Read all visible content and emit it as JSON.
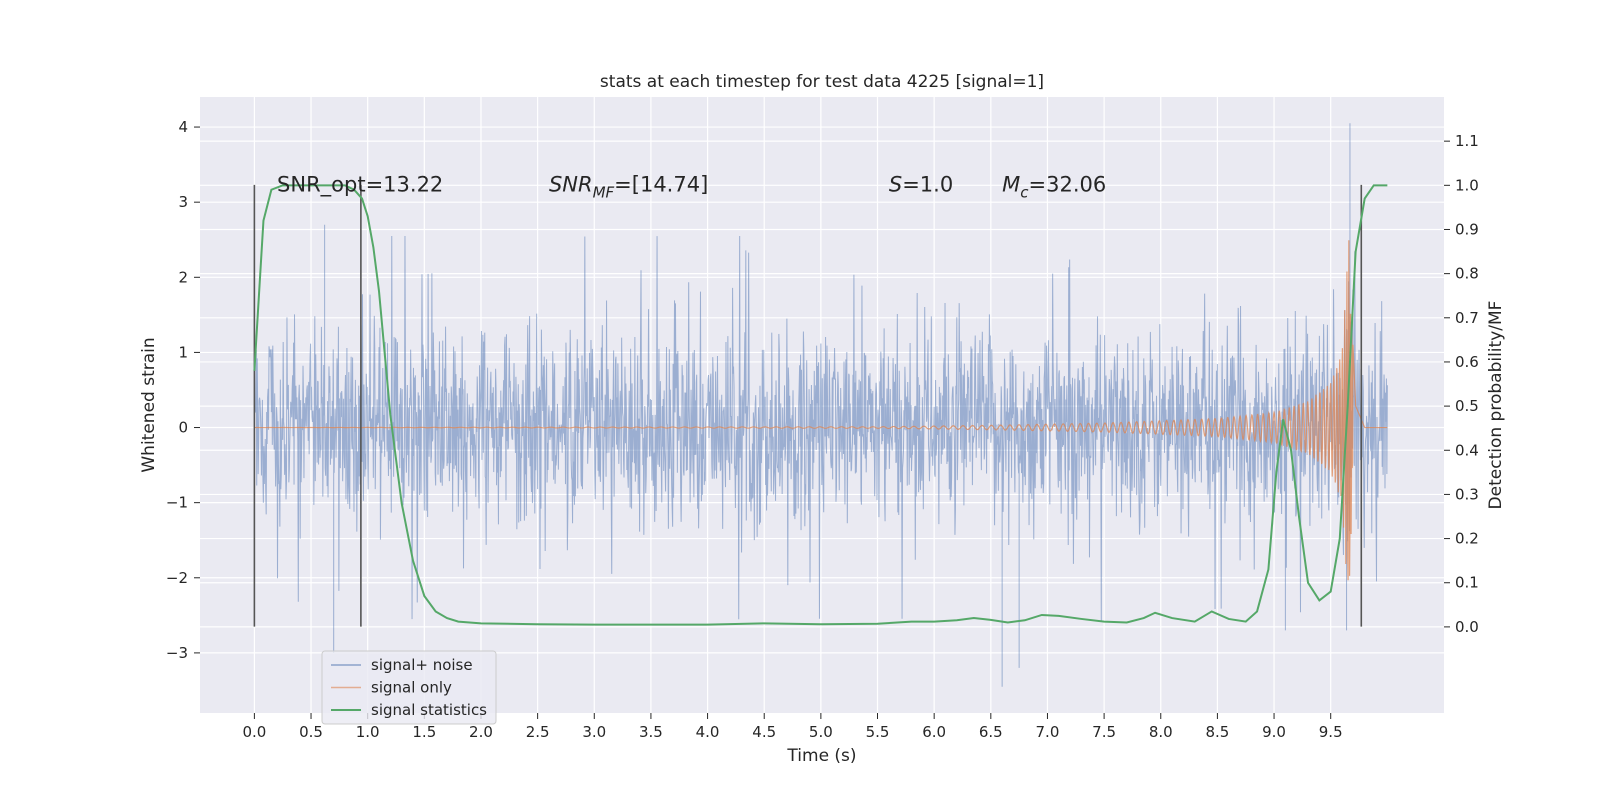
{
  "chart_data": {
    "type": "line",
    "title": "stats at each timestep for test data 4225 [signal=1]",
    "xlabel": "Time (s)",
    "ylabel": "Whitened strain",
    "y2label": "Detection probability/MF",
    "xlim": [
      -0.48,
      10.5
    ],
    "ylim": [
      -3.8,
      4.4
    ],
    "y2lim": [
      -0.195,
      1.2
    ],
    "xticks": [
      0.0,
      0.5,
      1.0,
      1.5,
      2.0,
      2.5,
      3.0,
      3.5,
      4.0,
      4.5,
      5.0,
      5.5,
      6.0,
      6.5,
      7.0,
      7.5,
      8.0,
      8.5,
      9.0,
      9.5
    ],
    "xtick_labels": [
      "0.0",
      "0.5",
      "1.0",
      "1.5",
      "2.0",
      "2.5",
      "3.0",
      "3.5",
      "4.0",
      "4.5",
      "5.0",
      "5.5",
      "6.0",
      "6.5",
      "7.0",
      "7.5",
      "8.0",
      "8.5",
      "9.0",
      "9.5"
    ],
    "yticks": [
      -3,
      -2,
      -1,
      0,
      1,
      2,
      3,
      4
    ],
    "ytick_labels": [
      "−3",
      "−2",
      "−1",
      "0",
      "1",
      "2",
      "3",
      "4"
    ],
    "y2ticks": [
      0.0,
      0.1,
      0.2,
      0.3,
      0.4,
      0.5,
      0.6,
      0.7,
      0.8,
      0.9,
      1.0,
      1.1
    ],
    "y2tick_labels": [
      "0.0",
      "0.1",
      "0.2",
      "0.3",
      "0.4",
      "0.5",
      "0.6",
      "0.7",
      "0.8",
      "0.9",
      "1.0",
      "1.1"
    ],
    "grid": true,
    "legend_position": "bottom-left",
    "colors": {
      "noise": "#4c72b0",
      "signal": "#dd8452",
      "stats": "#55a868",
      "background": "#eaeaf2",
      "grid": "#ffffff",
      "vline": "#555555"
    },
    "series": [
      {
        "name": "signal+ noise",
        "axis": "left",
        "kind": "noise-band",
        "x_range": [
          0.0,
          10.0
        ],
        "typical_envelope": [
          -1.4,
          1.4
        ],
        "peaks": [
          [
            0.7,
            -3.0
          ],
          [
            0.62,
            2.7
          ],
          [
            6.6,
            -3.45
          ],
          [
            6.75,
            -3.2
          ],
          [
            9.67,
            4.05
          ],
          [
            9.64,
            -2.7
          ],
          [
            9.1,
            -2.7
          ]
        ]
      },
      {
        "name": "signal only",
        "axis": "left",
        "kind": "chirp",
        "x_range": [
          0.0,
          10.0
        ],
        "merger_time": 9.7,
        "amplitude_points": [
          [
            5.5,
            0.01
          ],
          [
            6.5,
            0.03
          ],
          [
            7.5,
            0.06
          ],
          [
            8.5,
            0.12
          ],
          [
            9.0,
            0.2
          ],
          [
            9.3,
            0.35
          ],
          [
            9.5,
            0.6
          ],
          [
            9.6,
            1.0
          ],
          [
            9.66,
            2.5
          ],
          [
            9.72,
            0.3
          ],
          [
            9.8,
            0.0
          ]
        ]
      },
      {
        "name": "signal statistics",
        "axis": "right",
        "x": [
          0.0,
          0.08,
          0.15,
          0.25,
          0.4,
          0.6,
          0.8,
          0.88,
          0.95,
          1.0,
          1.05,
          1.1,
          1.15,
          1.2,
          1.3,
          1.4,
          1.5,
          1.6,
          1.7,
          1.8,
          2.0,
          2.5,
          3.0,
          3.5,
          4.0,
          4.5,
          5.0,
          5.5,
          5.8,
          6.0,
          6.2,
          6.35,
          6.5,
          6.65,
          6.8,
          6.95,
          7.1,
          7.3,
          7.5,
          7.7,
          7.85,
          7.95,
          8.1,
          8.3,
          8.45,
          8.6,
          8.75,
          8.85,
          8.95,
          9.02,
          9.08,
          9.15,
          9.22,
          9.3,
          9.4,
          9.5,
          9.58,
          9.65,
          9.72,
          9.8,
          9.88,
          9.95,
          10.0
        ],
        "y": [
          0.58,
          0.92,
          0.99,
          1.0,
          1.0,
          1.0,
          1.0,
          0.99,
          0.97,
          0.93,
          0.86,
          0.76,
          0.62,
          0.48,
          0.28,
          0.15,
          0.07,
          0.035,
          0.02,
          0.012,
          0.008,
          0.006,
          0.005,
          0.005,
          0.005,
          0.008,
          0.006,
          0.007,
          0.012,
          0.012,
          0.015,
          0.02,
          0.016,
          0.01,
          0.015,
          0.027,
          0.025,
          0.018,
          0.012,
          0.01,
          0.02,
          0.032,
          0.02,
          0.012,
          0.035,
          0.018,
          0.012,
          0.035,
          0.13,
          0.35,
          0.47,
          0.4,
          0.25,
          0.1,
          0.06,
          0.08,
          0.2,
          0.5,
          0.85,
          0.97,
          1.0,
          1.0,
          1.0
        ]
      }
    ],
    "vlines": [
      {
        "x": 0.0,
        "y_from": -2.65,
        "y_to": 3.23
      },
      {
        "x": 0.94,
        "y_from": -2.65,
        "y_to": 3.23
      },
      {
        "x": 9.77,
        "y_from": -2.65,
        "y_to": 3.23
      }
    ],
    "annotations": [
      {
        "id": "snr-opt",
        "x": 0.2,
        "y": 3.25,
        "text": "SNR_opt=13.22"
      },
      {
        "id": "snr-mf",
        "x": 2.6,
        "y": 3.25,
        "base": "SNR",
        "sub": "MF",
        "rest": "=[14.74]"
      },
      {
        "id": "s-stat",
        "x": 5.6,
        "y": 3.25,
        "base": "S",
        "rest": "=1.0"
      },
      {
        "id": "mc",
        "x": 6.6,
        "y": 3.25,
        "base": "M",
        "sub": "c",
        "rest": "=32.06"
      }
    ],
    "legend": [
      {
        "label": "signal+ noise",
        "color_key": "noise"
      },
      {
        "label": "signal only",
        "color_key": "signal"
      },
      {
        "label": "signal statistics",
        "color_key": "stats"
      }
    ]
  }
}
